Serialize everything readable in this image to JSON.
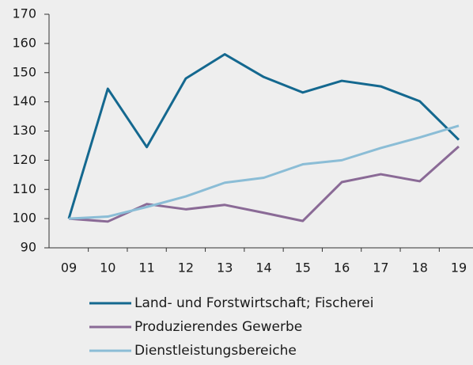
{
  "chart_data": {
    "type": "line",
    "categories": [
      "09",
      "10",
      "11",
      "12",
      "13",
      "14",
      "15",
      "16",
      "17",
      "18",
      "19"
    ],
    "series": [
      {
        "name": "Land- und Forstwirtschaft; Fischerei",
        "color": "#14688f",
        "values": [
          100,
          144.5,
          124.5,
          148,
          156.3,
          148.5,
          143.2,
          147.2,
          145.3,
          140.2,
          127
        ]
      },
      {
        "name": "Produzierendes Gewerbe",
        "color": "#8a6a96",
        "values": [
          100,
          99,
          105,
          103.2,
          104.7,
          102,
          99.2,
          112.5,
          115.2,
          112.8,
          124.7
        ]
      },
      {
        "name": "Dienstleistungsbereiche",
        "color": "#8bbdd6",
        "values": [
          100,
          100.7,
          104,
          107.6,
          112.3,
          114,
          118.6,
          120,
          124.2,
          127.8,
          131.8
        ]
      }
    ],
    "ylim": [
      90,
      170
    ],
    "yticks": [
      90,
      100,
      110,
      120,
      130,
      140,
      150,
      160,
      170
    ]
  }
}
